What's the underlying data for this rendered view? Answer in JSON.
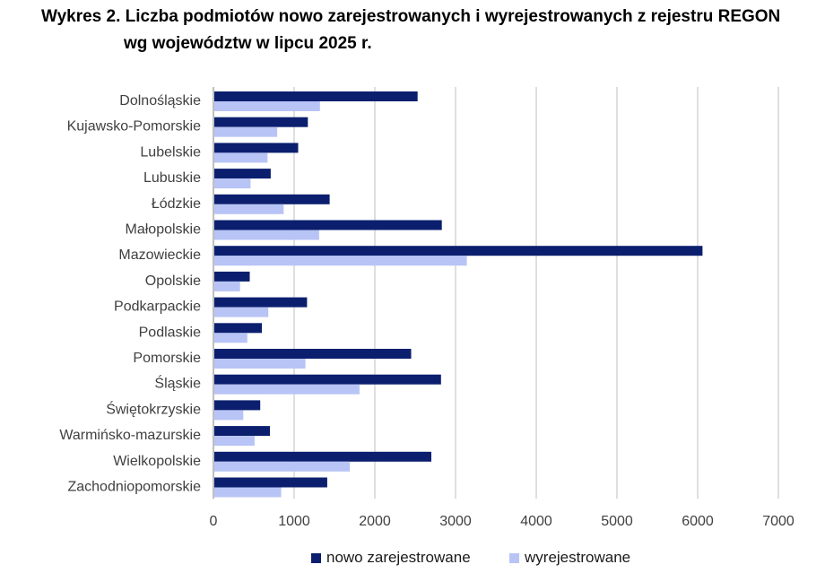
{
  "title": {
    "line1": "Wykres 2. Liczba podmiotów nowo zarejestrowanych i wyrejestrowanych z rejestru REGON",
    "line2": "wg województw w lipcu 2025 r."
  },
  "colors": {
    "series1": "#0b1f6e",
    "series2": "#b8c4f5",
    "grid": "#bfbfbf",
    "axis": "#7f7f7f",
    "text": "#404040"
  },
  "legend": {
    "series1": "nowo zarejestrowane",
    "series2": "wyrejestrowane"
  },
  "chart_data": {
    "type": "bar",
    "orientation": "horizontal",
    "title": "Wykres 2. Liczba podmiotów nowo zarejestrowanych i wyrejestrowanych z rejestru REGON wg województw w lipcu 2025 r.",
    "categories": [
      "Dolnośląskie",
      "Kujawsko-Pomorskie",
      "Lubelskie",
      "Lubuskie",
      "Łódzkie",
      "Małopolskie",
      "Mazowieckie",
      "Opolskie",
      "Podkarpackie",
      "Podlaskie",
      "Pomorskie",
      "Śląskie",
      "Świętokrzyskie",
      "Warmińsko-mazurskie",
      "Wielkopolskie",
      "Zachodniopomorskie"
    ],
    "series": [
      {
        "name": "nowo zarejestrowane",
        "values": [
          2530,
          1170,
          1050,
          710,
          1440,
          2830,
          6060,
          450,
          1160,
          600,
          2450,
          2820,
          580,
          700,
          2700,
          1410
        ]
      },
      {
        "name": "wyrejestrowane",
        "values": [
          1320,
          790,
          670,
          460,
          870,
          1310,
          3140,
          330,
          680,
          420,
          1140,
          1810,
          370,
          510,
          1690,
          840
        ]
      }
    ],
    "xlim": [
      0,
      7000
    ],
    "xticks": [
      0,
      1000,
      2000,
      3000,
      4000,
      5000,
      6000,
      7000
    ],
    "grid": true,
    "legend_position": "bottom"
  }
}
